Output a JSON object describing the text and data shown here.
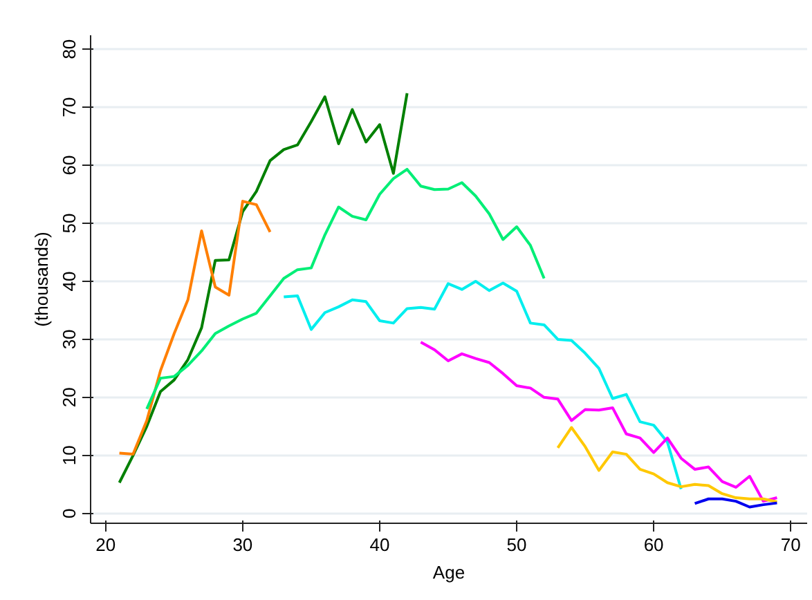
{
  "chart_data": {
    "type": "line",
    "xlabel": "Age",
    "ylabel": "(thousands)",
    "xlim": [
      18.9,
      71.2
    ],
    "ylim": [
      -1.7,
      82.4
    ],
    "xticks": [
      20,
      30,
      40,
      50,
      60,
      70
    ],
    "yticks": [
      0,
      10,
      20,
      30,
      40,
      50,
      60,
      70,
      80
    ],
    "grid": "y",
    "marker": "none",
    "line_style": "solid",
    "series": [
      {
        "color": "#008000",
        "x": [
          21,
          22,
          23,
          24,
          25,
          26,
          27,
          28,
          29,
          30,
          31,
          32,
          33,
          34,
          35,
          36,
          37,
          38,
          39,
          40,
          41,
          42
        ],
        "values": [
          5.3,
          10,
          15,
          21,
          23,
          26.5,
          32,
          43.6,
          43.7,
          52,
          55.5,
          60.8,
          62.7,
          63.5,
          67.5,
          71.8,
          63.7,
          69.6,
          64,
          67,
          58.6,
          72.4
        ]
      },
      {
        "color": "#ff7f00",
        "x": [
          21,
          22,
          23,
          24,
          25,
          26,
          27,
          28,
          29,
          30,
          31,
          32
        ],
        "values": [
          10.4,
          10.2,
          16,
          24.6,
          31,
          36.8,
          48.7,
          39,
          37.6,
          53.8,
          53.2,
          48.5
        ]
      },
      {
        "color": "#00ee76",
        "x": [
          23,
          24,
          25,
          26,
          27,
          28,
          29,
          30,
          31,
          32,
          33,
          34,
          35,
          36,
          37,
          38,
          39,
          40,
          41,
          42,
          43,
          44,
          45,
          46,
          47,
          48,
          49,
          50,
          51,
          52
        ],
        "values": [
          18,
          23.3,
          23.6,
          25.5,
          28,
          31,
          32.3,
          33.5,
          34.5,
          37.5,
          40.5,
          42,
          42.3,
          48,
          52.8,
          51.2,
          50.6,
          55,
          57.7,
          59.3,
          56.4,
          55.8,
          55.9,
          57,
          54.7,
          51.6,
          47.2,
          49.4,
          46.2,
          40.5
        ]
      },
      {
        "color": "#00eeee",
        "x": [
          33,
          34,
          35,
          36,
          37,
          38,
          39,
          40,
          41,
          42,
          43,
          44,
          45,
          46,
          47,
          48,
          49,
          50,
          51,
          52,
          53,
          54,
          55,
          56,
          57,
          58,
          59,
          60,
          61,
          62
        ],
        "values": [
          37.3,
          37.5,
          31.7,
          34.6,
          35.6,
          36.8,
          36.5,
          33.2,
          32.8,
          35.3,
          35.5,
          35.2,
          39.6,
          38.6,
          40,
          38.4,
          39.7,
          38.3,
          32.8,
          32.5,
          30,
          29.8,
          27.6,
          25,
          19.8,
          20.5,
          15.8,
          15.2,
          12.3,
          4.2
        ]
      },
      {
        "color": "#ff00ff",
        "x": [
          43,
          44,
          45,
          46,
          47,
          48,
          49,
          50,
          51,
          52,
          53,
          54,
          55,
          56,
          57,
          58,
          59,
          60,
          61,
          62,
          63,
          64,
          65,
          66,
          67,
          68,
          69
        ],
        "values": [
          29.5,
          28.2,
          26.3,
          27.5,
          26.7,
          26,
          24.1,
          22,
          21.6,
          20,
          19.7,
          16,
          17.9,
          17.8,
          18.2,
          13.7,
          13,
          10.5,
          13,
          9.5,
          7.6,
          8,
          5.5,
          4.5,
          6.4,
          2.1,
          2.7
        ]
      },
      {
        "color": "#ffc800",
        "x": [
          53,
          54,
          55,
          56,
          57,
          58,
          59,
          60,
          61,
          62,
          63,
          64,
          65,
          66,
          67,
          68,
          69
        ],
        "values": [
          11.3,
          14.8,
          11.5,
          7.4,
          10.6,
          10.2,
          7.6,
          6.8,
          5.3,
          4.6,
          5,
          4.8,
          3.4,
          2.7,
          2.5,
          2.5,
          2
        ]
      },
      {
        "color": "#0000ee",
        "x": [
          63,
          64,
          65,
          66,
          67,
          68,
          69
        ],
        "values": [
          1.7,
          2.5,
          2.5,
          2.1,
          1.1,
          1.5,
          1.8
        ]
      }
    ]
  }
}
